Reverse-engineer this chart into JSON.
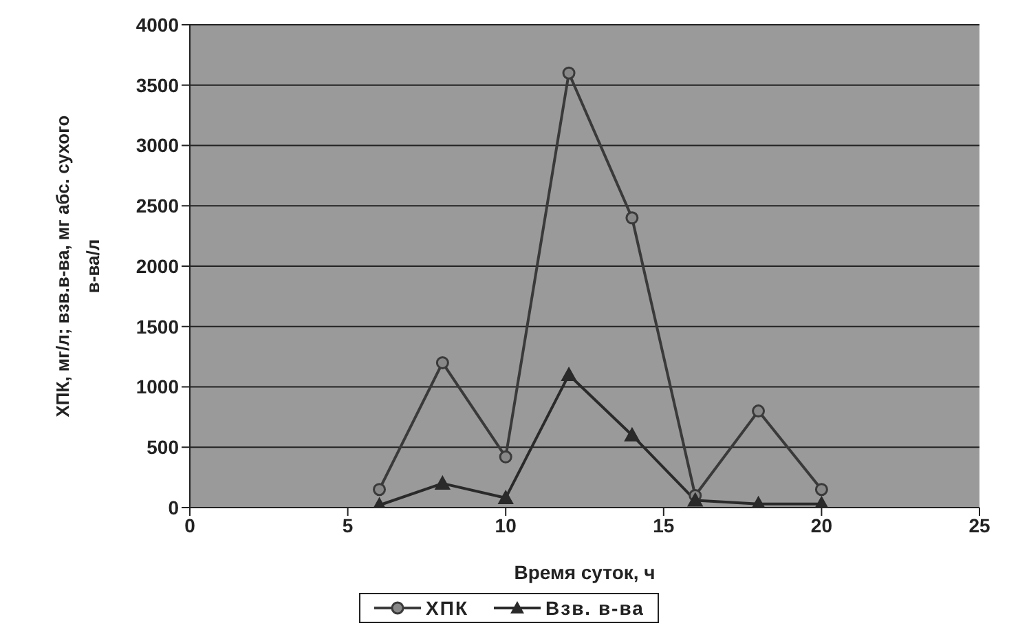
{
  "chart_data": {
    "type": "line",
    "xlabel": "Время суток, ч",
    "ylabel": "ХПК, мг/л; взв.в-ва, мг абс. сухого в-ва/л",
    "x": [
      6,
      8,
      10,
      12,
      14,
      16,
      18,
      20
    ],
    "series": [
      {
        "name": "ХПК",
        "color": "#3a3a3a",
        "marker": "circle",
        "values": [
          150,
          1200,
          420,
          3600,
          2400,
          100,
          800,
          150
        ]
      },
      {
        "name": "Взв. в-ва",
        "color": "#2a2a2a",
        "marker": "triangle",
        "values": [
          20,
          200,
          80,
          1100,
          600,
          60,
          30,
          30
        ]
      }
    ],
    "xlim": [
      0,
      25
    ],
    "xticks": [
      0,
      5,
      10,
      15,
      20,
      25
    ],
    "ylim": [
      0,
      4000
    ],
    "yticks": [
      0,
      500,
      1000,
      1500,
      2000,
      2500,
      3000,
      3500,
      4000
    ],
    "grid": "y",
    "legend": "bottom",
    "line_style": "solid"
  }
}
